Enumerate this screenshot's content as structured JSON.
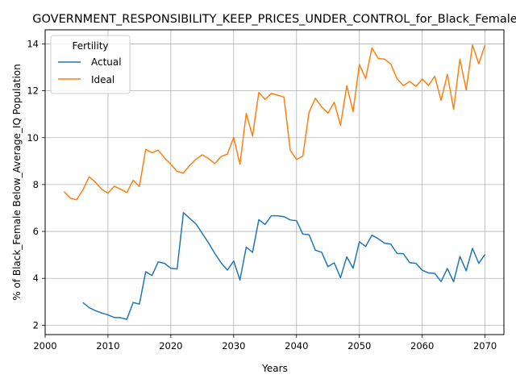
{
  "chart_data": {
    "type": "line",
    "title": "GOVERNMENT_RESPONSIBILITY_KEEP_PRICES_UNDER_CONTROL_for_Black_Female",
    "xlabel": "Years",
    "ylabel": "% of Black_Female Below_Average_IQ Population",
    "xlim": [
      2000,
      2073
    ],
    "ylim": [
      1.6,
      14.6
    ],
    "xticks": [
      2000,
      2010,
      2020,
      2030,
      2040,
      2050,
      2060,
      2070
    ],
    "yticks": [
      2,
      4,
      6,
      8,
      10,
      12,
      14
    ],
    "grid": true,
    "legend": {
      "title": "Fertility",
      "placement": "top-left"
    },
    "colors": {
      "Actual": "#1f77b4",
      "Ideal": "#ff7f0e"
    },
    "series": [
      {
        "name": "Actual",
        "x": [
          2006,
          2007,
          2008,
          2009,
          2010,
          2011,
          2012,
          2013,
          2014,
          2015,
          2016,
          2017,
          2018,
          2019,
          2020,
          2021,
          2022,
          2023,
          2024,
          2025,
          2026,
          2027,
          2028,
          2029,
          2030,
          2031,
          2032,
          2033,
          2034,
          2035,
          2036,
          2037,
          2038,
          2039,
          2040,
          2041,
          2042,
          2043,
          2044,
          2045,
          2046,
          2047,
          2048,
          2049,
          2050,
          2051,
          2052,
          2053,
          2054,
          2055,
          2056,
          2057,
          2058,
          2059,
          2060,
          2061,
          2062,
          2063,
          2064,
          2065,
          2066,
          2067,
          2068,
          2069,
          2070
        ],
        "values": [
          2.97,
          2.75,
          2.62,
          2.52,
          2.44,
          2.33,
          2.32,
          2.25,
          2.97,
          2.9,
          4.28,
          4.12,
          4.7,
          4.64,
          4.43,
          4.4,
          6.8,
          6.56,
          6.32,
          5.92,
          5.51,
          5.06,
          4.66,
          4.35,
          4.74,
          3.93,
          5.33,
          5.11,
          6.5,
          6.3,
          6.67,
          6.67,
          6.63,
          6.49,
          6.46,
          5.89,
          5.86,
          5.2,
          5.11,
          4.5,
          4.66,
          4.03,
          4.92,
          4.43,
          5.56,
          5.36,
          5.84,
          5.69,
          5.5,
          5.46,
          5.06,
          5.05,
          4.67,
          4.64,
          4.35,
          4.23,
          4.21,
          3.86,
          4.42,
          3.85,
          4.93,
          4.32,
          5.28,
          4.64,
          5.02
        ]
      },
      {
        "name": "Ideal",
        "x": [
          2003,
          2004,
          2005,
          2006,
          2007,
          2008,
          2009,
          2010,
          2011,
          2012,
          2013,
          2014,
          2015,
          2016,
          2017,
          2018,
          2019,
          2020,
          2021,
          2022,
          2023,
          2024,
          2025,
          2026,
          2027,
          2028,
          2029,
          2030,
          2031,
          2032,
          2033,
          2034,
          2035,
          2036,
          2037,
          2038,
          2039,
          2040,
          2041,
          2042,
          2043,
          2044,
          2045,
          2046,
          2047,
          2048,
          2049,
          2050,
          2051,
          2052,
          2053,
          2054,
          2055,
          2056,
          2057,
          2058,
          2059,
          2060,
          2061,
          2062,
          2063,
          2064,
          2065,
          2066,
          2067,
          2068,
          2069,
          2070
        ],
        "values": [
          7.7,
          7.42,
          7.35,
          7.77,
          8.33,
          8.1,
          7.8,
          7.63,
          7.93,
          7.8,
          7.66,
          8.18,
          7.92,
          9.5,
          9.36,
          9.47,
          9.13,
          8.87,
          8.56,
          8.49,
          8.82,
          9.08,
          9.27,
          9.11,
          8.89,
          9.2,
          9.3,
          10.01,
          8.87,
          11.03,
          10.07,
          11.93,
          11.63,
          11.89,
          11.81,
          11.73,
          9.46,
          9.07,
          9.21,
          11.09,
          11.68,
          11.31,
          11.05,
          11.51,
          10.53,
          12.22,
          11.11,
          13.12,
          12.52,
          13.83,
          13.38,
          13.35,
          13.14,
          12.51,
          12.22,
          12.4,
          12.19,
          12.5,
          12.23,
          12.62,
          11.59,
          12.7,
          11.21,
          13.35,
          12.04,
          13.95,
          13.15,
          13.95
        ]
      }
    ]
  }
}
